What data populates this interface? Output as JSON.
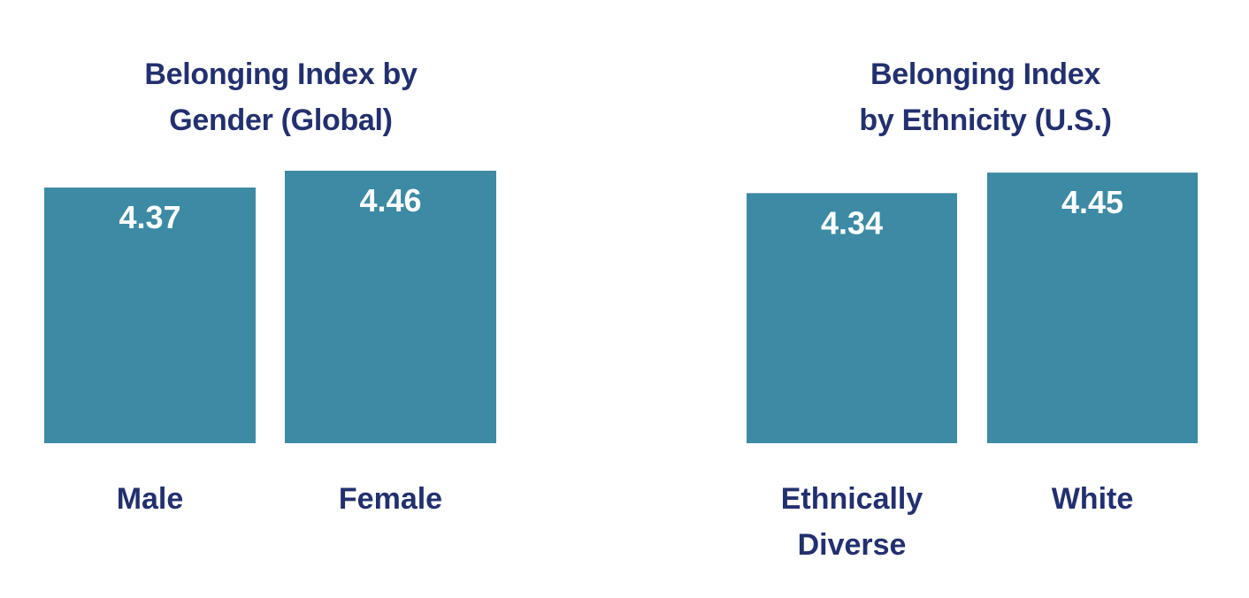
{
  "colors": {
    "bar": "#3d8aa4",
    "title": "#23306f",
    "value_text": "#ffffff",
    "label_text": "#23306f"
  },
  "chart_data": [
    {
      "type": "bar",
      "title": "Belonging Index by\nGender (Global)",
      "categories": [
        "Male",
        "Female"
      ],
      "values": [
        4.37,
        4.46
      ],
      "value_labels": [
        "4.37",
        "4.46"
      ],
      "xlabel": "",
      "ylabel": "",
      "grid": false
    },
    {
      "type": "bar",
      "title": "Belonging Index\nby Ethnicity (U.S.)",
      "categories": [
        "Ethnically\nDiverse",
        "White"
      ],
      "values": [
        4.34,
        4.45
      ],
      "value_labels": [
        "4.34",
        "4.45"
      ],
      "xlabel": "",
      "ylabel": "",
      "grid": false
    }
  ]
}
